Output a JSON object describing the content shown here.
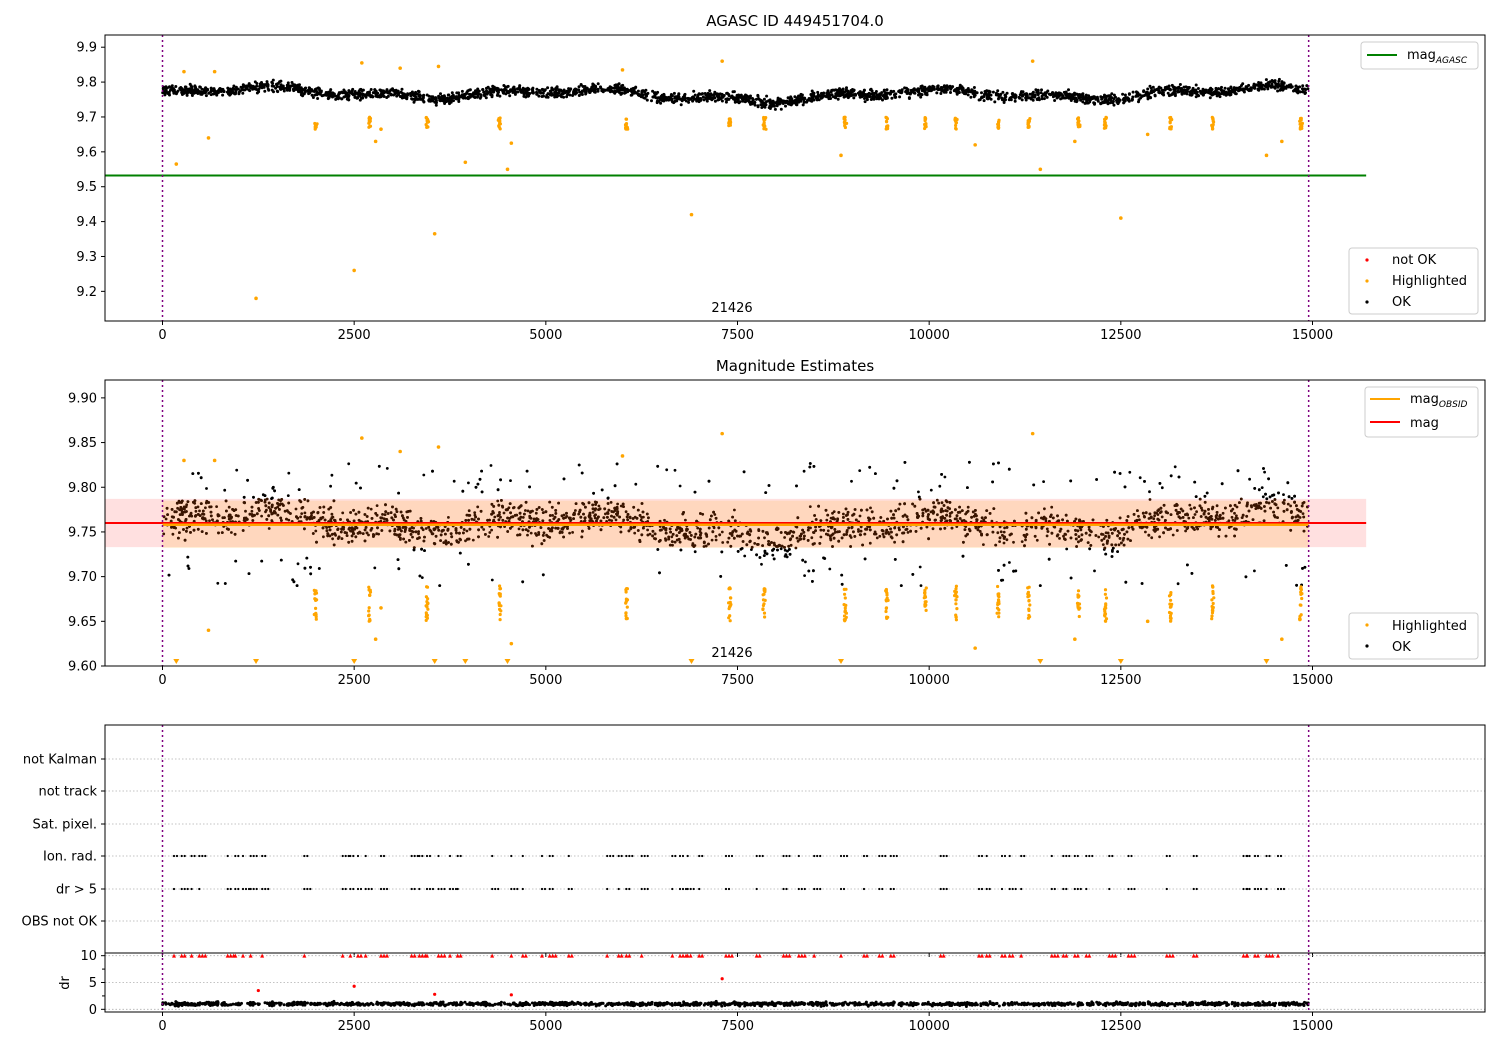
{
  "chart_data": [
    {
      "type": "scatter",
      "title": "AGASC ID 449451704.0",
      "xlim": [
        -750,
        17250
      ],
      "ylim": [
        9.115,
        9.935
      ],
      "x_ticks": [
        0,
        2500,
        5000,
        7500,
        10000,
        12500,
        15000
      ],
      "x_tick_labels": [
        "0",
        "2500",
        "5000",
        "7500",
        "10000",
        "12500",
        "15000"
      ],
      "y_ticks": [
        9.2,
        9.3,
        9.4,
        9.5,
        9.6,
        9.7,
        9.8,
        9.9
      ],
      "y_tick_labels": [
        "9.2",
        "9.3",
        "9.4",
        "9.5",
        "9.6",
        "9.7",
        "9.8",
        "9.9"
      ],
      "obsid_boundaries": [
        0,
        14950
      ],
      "annotation": "21426",
      "series": [
        {
          "name": "mag_AGASC",
          "type": "line",
          "x": [
            -750,
            15700
          ],
          "y": [
            9.532,
            9.532
          ]
        },
        {
          "name": "OK",
          "type": "scatter",
          "x_range": [
            0,
            14950
          ],
          "y_center": 9.765,
          "y_band": [
            9.71,
            9.83
          ],
          "n_points": 2600
        },
        {
          "name": "Highlighted",
          "type": "scatter",
          "points": [
            [
              180,
              9.565
            ],
            [
              280,
              9.83
            ],
            [
              600,
              9.64
            ],
            [
              680,
              9.83
            ],
            [
              1220,
              9.18
            ],
            [
              2500,
              9.26
            ],
            [
              2600,
              9.855
            ],
            [
              2780,
              9.63
            ],
            [
              2850,
              9.665
            ],
            [
              3100,
              9.84
            ],
            [
              3550,
              9.365
            ],
            [
              3600,
              9.845
            ],
            [
              3950,
              9.57
            ],
            [
              4500,
              9.55
            ],
            [
              4550,
              9.625
            ],
            [
              6000,
              9.835
            ],
            [
              6900,
              9.42
            ],
            [
              7300,
              9.86
            ],
            [
              8850,
              9.59
            ],
            [
              10600,
              9.62
            ],
            [
              11350,
              9.86
            ],
            [
              11450,
              9.55
            ],
            [
              11900,
              9.63
            ],
            [
              12500,
              9.41
            ],
            [
              12850,
              9.65
            ],
            [
              14400,
              9.59
            ],
            [
              14600,
              9.63
            ]
          ],
          "clusters_x": [
            2000,
            2700,
            3450,
            4400,
            6050,
            7400,
            7850,
            8900,
            9450,
            9950,
            10350,
            10900,
            11300,
            11950,
            12300,
            13150,
            13700,
            14850
          ]
        },
        {
          "name": "not OK",
          "type": "scatter",
          "points": []
        }
      ],
      "legend_upper": [
        "mag_AGASC"
      ],
      "legend_lower": [
        "not OK",
        "Highlighted",
        "OK"
      ],
      "legend_placement": [
        "upper right",
        "lower right"
      ]
    },
    {
      "type": "scatter",
      "title": "Magnitude Estimates",
      "xlim": [
        -750,
        17250
      ],
      "ylim": [
        9.6,
        9.92
      ],
      "x_ticks": [
        0,
        2500,
        5000,
        7500,
        10000,
        12500,
        15000
      ],
      "x_tick_labels": [
        "0",
        "2500",
        "5000",
        "7500",
        "10000",
        "12500",
        "15000"
      ],
      "y_ticks": [
        9.6,
        9.65,
        9.7,
        9.75,
        9.8,
        9.85,
        9.9
      ],
      "y_tick_labels": [
        "9.60",
        "9.65",
        "9.70",
        "9.75",
        "9.80",
        "9.85",
        "9.90"
      ],
      "obsid_boundaries": [
        0,
        14950
      ],
      "annotation": "21426",
      "series": [
        {
          "name": "mag_OBSID",
          "type": "line",
          "x": [
            0,
            14950
          ],
          "y": [
            9.758,
            9.758
          ],
          "band": [
            9.732,
            9.785
          ]
        },
        {
          "name": "mag",
          "type": "line",
          "x": [
            -750,
            15700
          ],
          "y": [
            9.76,
            9.76
          ],
          "band": [
            9.733,
            9.787
          ]
        },
        {
          "name": "OK",
          "type": "scatter",
          "x_range": [
            0,
            14950
          ],
          "y_center": 9.758,
          "y_band": [
            9.69,
            9.83
          ],
          "n_points": 3600
        },
        {
          "name": "Highlighted",
          "type": "scatter",
          "clusters_x": [
            2000,
            2700,
            3450,
            4400,
            6050,
            7400,
            7850,
            8900,
            9450,
            9950,
            10350,
            10900,
            11300,
            11950,
            12300,
            13150,
            13700,
            14850
          ],
          "y_band": [
            9.65,
            9.69
          ],
          "out_of_range_markers_x": [
            180,
            1220,
            2500,
            3550,
            3950,
            4500,
            6900,
            8850,
            11450,
            12500,
            14400
          ]
        }
      ],
      "legend_upper": [
        "mag_OBSID",
        "mag"
      ],
      "legend_lower": [
        "Highlighted",
        "OK"
      ],
      "legend_placement": [
        "upper right",
        "lower right"
      ]
    },
    {
      "type": "scatter",
      "title": "",
      "xlim": [
        -750,
        17250
      ],
      "x_ticks": [
        0,
        2500,
        5000,
        7500,
        10000,
        12500,
        15000
      ],
      "x_tick_labels": [
        "0",
        "2500",
        "5000",
        "7500",
        "10000",
        "12500",
        "15000"
      ],
      "flag_rows": [
        "not Kalman",
        "not track",
        "Sat. pixel.",
        "Ion. rad.",
        "dr > 5",
        "OBS not OK"
      ],
      "flag_grid": true,
      "flag_event_times": [
        150,
        250,
        380,
        480,
        850,
        950,
        1050,
        1150,
        1300,
        1850,
        2350,
        2450,
        2550,
        2650,
        2850,
        3250,
        3350,
        3450,
        3600,
        3750,
        3850,
        4300,
        4550,
        4700,
        4950,
        5050,
        5300,
        5800,
        5950,
        6050,
        6250,
        6650,
        6750,
        6850,
        7000,
        7350,
        7750,
        8100,
        8300,
        8500,
        8850,
        9150,
        9350,
        9500,
        10150,
        10650,
        10750,
        10950,
        11050,
        11200,
        11600,
        11750,
        11900,
        12050,
        12350,
        12600,
        13100,
        13450,
        14100,
        14150,
        14250,
        14400,
        14550
      ],
      "flagged_rows": [
        "Ion. rad.",
        "dr > 5"
      ],
      "observation_markers_x": [
        0,
        14950
      ],
      "dr": {
        "ylabel": "dr",
        "ylim": [
          -0.5,
          10.5
        ],
        "y_ticks": [
          0,
          5,
          10
        ],
        "y_tick_labels": [
          "0",
          "5",
          "10"
        ],
        "x_range": [
          0,
          14950
        ],
        "y_center": 1.0,
        "y_band": [
          0.2,
          1.8
        ],
        "n_points": 1600,
        "outliers": [
          [
            1250,
            3.5
          ],
          [
            2500,
            4.3
          ],
          [
            3550,
            2.8
          ],
          [
            4550,
            2.7
          ],
          [
            7300,
            5.7
          ]
        ],
        "clipped_at": 10,
        "clipped_event_times_ref": "flag_event_times"
      }
    }
  ],
  "legend": {
    "agasc_line_label": "mag",
    "agasc_line_subscript": "AGASC",
    "obsid_line_label": "mag",
    "obsid_line_subscript": "OBSID",
    "mag_line_label": "mag",
    "not_ok_label": "not OK",
    "highlighted_label": "Highlighted",
    "ok_label": "OK"
  },
  "colors": {
    "ok": "#000000",
    "highlighted": "#ffa500",
    "not_ok": "#ff0000",
    "agasc_line": "#008000",
    "obsid_line": "#ffa500",
    "mag_line": "#ff0000",
    "mag_band": "#ff0000",
    "obsid_band": "#ffa500",
    "obsid_boundary": "#800080",
    "grid": "#b0b0b0"
  }
}
